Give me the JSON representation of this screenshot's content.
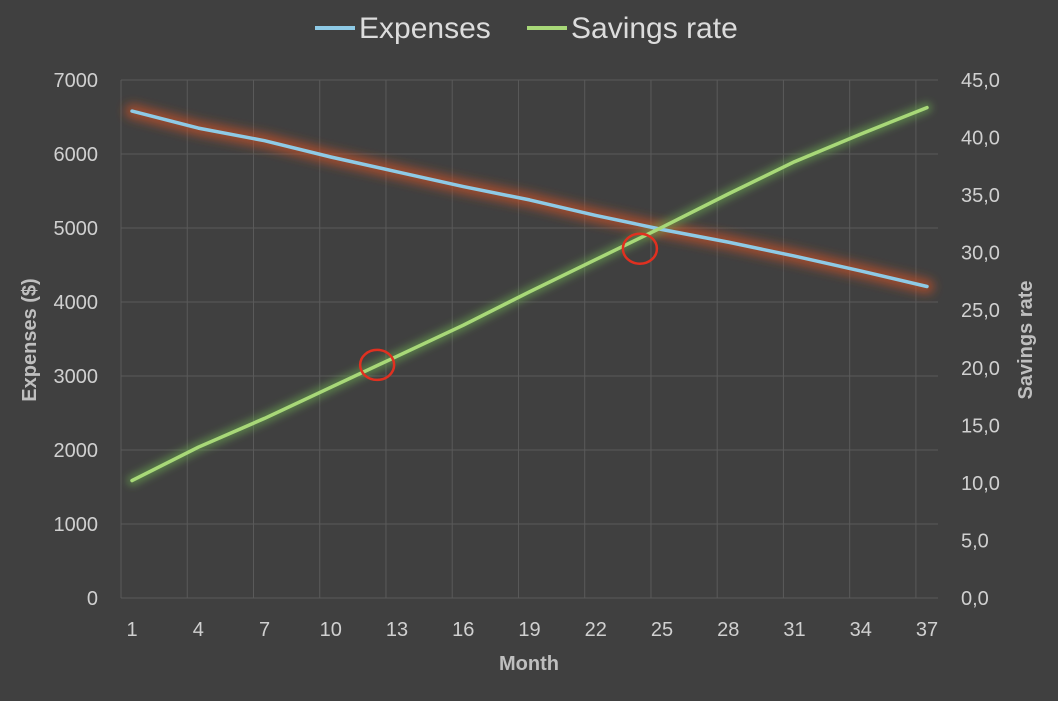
{
  "chart_data": {
    "type": "line",
    "title": "",
    "xlabel": "Month",
    "ylabel": "Expenses ($)",
    "y2label": "Savings rate",
    "x_ticks": [
      "1",
      "4",
      "7",
      "10",
      "13",
      "16",
      "19",
      "22",
      "25",
      "28",
      "31",
      "34",
      "37"
    ],
    "y_ticks": [
      "0",
      "1000",
      "2000",
      "3000",
      "4000",
      "5000",
      "6000",
      "7000"
    ],
    "y2_ticks": [
      "0,0",
      "5,0",
      "10,0",
      "15,0",
      "20,0",
      "25,0",
      "30,0",
      "35,0",
      "40,0",
      "45,0"
    ],
    "xlim": [
      0.5,
      37.5
    ],
    "ylim": [
      0,
      7000
    ],
    "y2lim": [
      0,
      45
    ],
    "grid": true,
    "legend_position": "top",
    "series": [
      {
        "name": "Expenses",
        "axis": "left",
        "color": "#8ecae6",
        "glow_color": "#c0502a",
        "x": [
          1,
          4,
          7,
          10,
          13,
          16,
          19,
          22,
          25,
          28,
          31,
          34,
          37
        ],
        "values": [
          6580,
          6350,
          6180,
          5960,
          5760,
          5560,
          5380,
          5170,
          4980,
          4810,
          4620,
          4420,
          4210
        ]
      },
      {
        "name": "Savings rate",
        "axis": "right",
        "color": "#a8d878",
        "glow_color": "#6aa84f",
        "x": [
          1,
          4,
          7,
          10,
          13,
          16,
          19,
          22,
          25,
          28,
          31,
          34,
          37
        ],
        "values": [
          10.2,
          13.1,
          15.6,
          18.3,
          21.0,
          23.7,
          26.6,
          29.4,
          32.2,
          35.1,
          37.9,
          40.3,
          42.6
        ]
      }
    ],
    "annotations": [
      {
        "type": "circle",
        "color": "#e03020",
        "x": 12.1,
        "y": 3150,
        "axis": "left"
      },
      {
        "type": "circle",
        "color": "#e03020",
        "x": 24.0,
        "y": 4720,
        "axis": "left"
      }
    ]
  }
}
